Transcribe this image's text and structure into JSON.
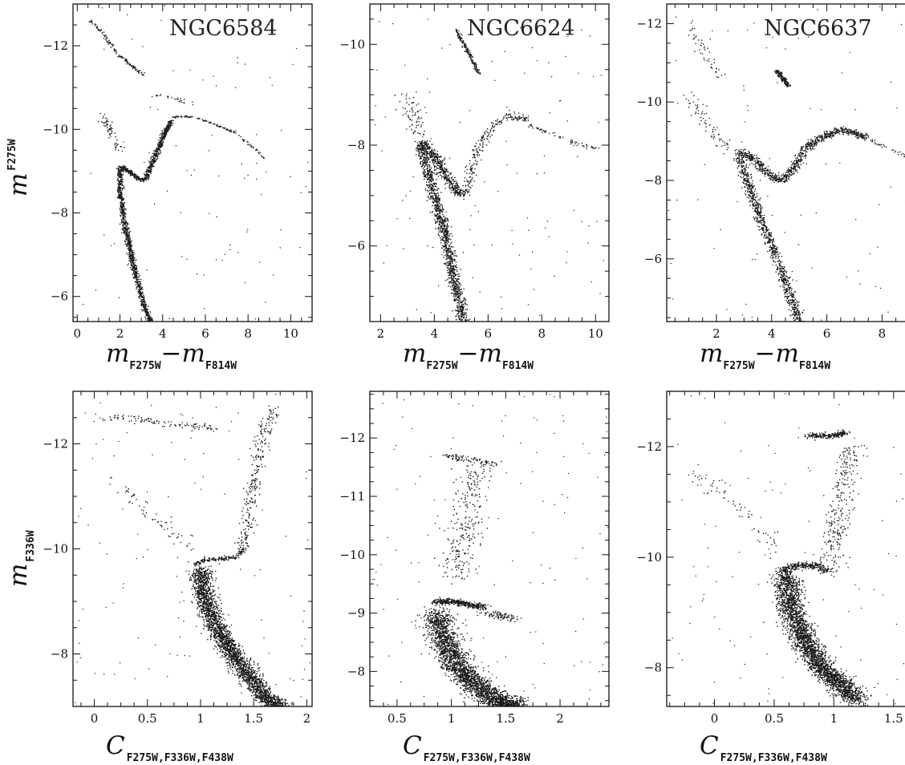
{
  "chart_data": [
    {
      "type": "scatter",
      "panel": "top-left",
      "title": "NGC6584",
      "xlabel": {
        "main": "m",
        "sub": "F275W",
        "main2": "m",
        "sub2": "F814W"
      },
      "ylabel": {
        "main": "m",
        "sub": "F275W",
        "sub_position": "superscript"
      },
      "xlim": [
        -0.2,
        11.0
      ],
      "ylim": [
        -5.4,
        -13.0
      ],
      "x_ticks": [
        0,
        2,
        4,
        6,
        8,
        10
      ],
      "x_tick_labels": [
        "0",
        "2",
        "4",
        "6",
        "8",
        "10"
      ],
      "y_ticks": [
        -6,
        -8,
        -10,
        -12
      ],
      "y_tick_labels": [
        "−6",
        "−8",
        "−10",
        "−12"
      ],
      "sequences": [
        {
          "name": "",
          "points": [
            [
              3.4,
              -5.4
            ],
            [
              3.0,
              -6.0
            ],
            [
              2.6,
              -6.8
            ],
            [
              2.2,
              -7.8
            ],
            [
              2.0,
              -8.6
            ],
            [
              2.05,
              -9.1
            ],
            [
              2.4,
              -9.0
            ],
            [
              2.9,
              -8.8
            ],
            [
              3.2,
              -8.8
            ],
            [
              3.6,
              -9.3
            ],
            [
              4.0,
              -9.8
            ],
            [
              4.4,
              -10.2
            ]
          ],
          "width": 0.14,
          "count": 1600
        },
        {
          "name": "",
          "points": [
            [
              4.5,
              -10.3
            ],
            [
              5.5,
              -10.3
            ],
            [
              6.5,
              -10.1
            ],
            [
              7.5,
              -9.9
            ],
            [
              8.8,
              -9.3
            ]
          ],
          "width": 0.08,
          "count": 120
        },
        {
          "name": "",
          "points": [
            [
              1.2,
              -10.4
            ],
            [
              1.5,
              -10.0
            ],
            [
              1.7,
              -9.7
            ],
            [
              2.0,
              -9.5
            ]
          ],
          "width": 0.25,
          "count": 60
        },
        {
          "name": "",
          "points": [
            [
              0.6,
              -12.6
            ],
            [
              1.2,
              -12.3
            ],
            [
              1.9,
              -11.8
            ],
            [
              2.6,
              -11.5
            ],
            [
              3.1,
              -11.3
            ]
          ],
          "width": 0.1,
          "count": 130
        },
        {
          "name": "",
          "points": [
            [
              3.5,
              -10.8
            ],
            [
              4.2,
              -10.8
            ],
            [
              4.8,
              -10.7
            ],
            [
              5.4,
              -10.6
            ]
          ],
          "width": 0.15,
          "count": 25
        }
      ],
      "scatter_noise": 90
    },
    {
      "type": "scatter",
      "panel": "top-middle",
      "title": "NGC6624",
      "xlabel": {
        "main": "m",
        "sub": "F275W",
        "main2": "m",
        "sub2": "F814W"
      },
      "xlim": [
        1.6,
        10.5
      ],
      "ylim": [
        -4.5,
        -10.8
      ],
      "x_ticks": [
        2,
        4,
        6,
        8,
        10
      ],
      "x_tick_labels": [
        "2",
        "4",
        "6",
        "8",
        "10"
      ],
      "y_ticks": [
        -6,
        -8,
        -10
      ],
      "y_tick_labels": [
        "−6",
        "−8",
        "−10"
      ],
      "sequences": [
        {
          "name": "",
          "points": [
            [
              5.1,
              -4.5
            ],
            [
              4.8,
              -5.2
            ],
            [
              4.4,
              -6.2
            ],
            [
              3.9,
              -7.2
            ],
            [
              3.5,
              -8.0
            ],
            [
              3.6,
              -8.05
            ],
            [
              4.2,
              -7.6
            ],
            [
              4.8,
              -7.1
            ],
            [
              5.1,
              -7.0
            ]
          ],
          "width": 0.22,
          "count": 1700
        },
        {
          "name": "",
          "points": [
            [
              5.2,
              -7.0
            ],
            [
              5.4,
              -7.6
            ],
            [
              5.7,
              -8.0
            ],
            [
              6.2,
              -8.4
            ],
            [
              6.8,
              -8.6
            ],
            [
              7.5,
              -8.5
            ]
          ],
          "width": 0.2,
          "count": 220
        },
        {
          "name": "",
          "points": [
            [
              7.5,
              -8.4
            ],
            [
              8.5,
              -8.2
            ],
            [
              9.5,
              -8.0
            ],
            [
              10.3,
              -7.9
            ]
          ],
          "width": 0.12,
          "count": 60
        },
        {
          "name": "",
          "points": [
            [
              4.8,
              -10.3
            ],
            [
              5.1,
              -10.0
            ],
            [
              5.4,
              -9.7
            ],
            [
              5.7,
              -9.4
            ]
          ],
          "width": 0.08,
          "count": 160
        },
        {
          "name": "",
          "points": [
            [
              2.9,
              -9.0
            ],
            [
              3.2,
              -8.6
            ],
            [
              3.4,
              -8.2
            ]
          ],
          "width": 0.35,
          "count": 70
        }
      ],
      "scatter_noise": 110
    },
    {
      "type": "scatter",
      "panel": "top-right",
      "title": "NGC6637",
      "xlabel": {
        "main": "m",
        "sub": "F275W",
        "main2": "m",
        "sub2": "F814W"
      },
      "xlim": [
        0.2,
        9.5
      ],
      "ylim": [
        -4.4,
        -12.5
      ],
      "x_ticks": [
        2,
        4,
        6,
        8
      ],
      "x_tick_labels": [
        "2",
        "4",
        "6",
        "8"
      ],
      "y_ticks": [
        -6,
        -8,
        -10,
        -12
      ],
      "y_tick_labels": [
        "−6",
        "−8",
        "−10",
        "−12"
      ],
      "sequences": [
        {
          "name": "",
          "points": [
            [
              5.0,
              -4.4
            ],
            [
              4.7,
              -5.0
            ],
            [
              4.2,
              -6.0
            ],
            [
              3.6,
              -7.0
            ],
            [
              3.1,
              -8.0
            ],
            [
              2.85,
              -8.6
            ],
            [
              2.9,
              -8.75
            ],
            [
              3.4,
              -8.5
            ],
            [
              4.0,
              -8.1
            ],
            [
              4.4,
              -8.0
            ],
            [
              4.8,
              -8.3
            ],
            [
              5.2,
              -8.8
            ],
            [
              5.8,
              -9.1
            ],
            [
              6.6,
              -9.3
            ],
            [
              7.4,
              -9.1
            ]
          ],
          "width": 0.2,
          "count": 1700
        },
        {
          "name": "",
          "points": [
            [
              7.4,
              -9.1
            ],
            [
              8.3,
              -8.8
            ],
            [
              9.3,
              -8.5
            ]
          ],
          "width": 0.15,
          "count": 45
        },
        {
          "name": "",
          "points": [
            [
              4.2,
              -10.8
            ],
            [
              4.4,
              -10.6
            ],
            [
              4.6,
              -10.4
            ]
          ],
          "width": 0.1,
          "count": 150
        },
        {
          "name": "",
          "points": [
            [
              1.0,
              -10.2
            ],
            [
              1.5,
              -9.6
            ],
            [
              2.0,
              -9.1
            ],
            [
              2.5,
              -8.8
            ]
          ],
          "width": 0.3,
          "count": 70
        },
        {
          "name": "",
          "points": [
            [
              1.0,
              -12.0
            ],
            [
              1.6,
              -11.2
            ],
            [
              2.2,
              -10.6
            ]
          ],
          "width": 0.25,
          "count": 50
        }
      ],
      "scatter_noise": 100
    },
    {
      "type": "scatter",
      "panel": "bottom-left",
      "xlabel": {
        "main": "C",
        "sub": "F275W,F336W,F438W"
      },
      "ylabel": {
        "main": "m",
        "sub": "F336W",
        "sub_position": "subscript"
      },
      "xlim": [
        -0.2,
        2.05
      ],
      "ylim": [
        -7.0,
        -13.0
      ],
      "x_ticks": [
        0,
        0.5,
        1,
        1.5,
        2
      ],
      "x_tick_labels": [
        "0",
        "0.5",
        "1",
        "1.5",
        "2"
      ],
      "y_ticks": [
        -8,
        -10,
        -12
      ],
      "y_tick_labels": [
        "−8",
        "−10",
        "−12"
      ],
      "sequences": [
        {
          "name": "",
          "points": [
            [
              1.0,
              -9.6
            ],
            [
              1.05,
              -9.0
            ],
            [
              1.15,
              -8.5
            ],
            [
              1.3,
              -8.0
            ],
            [
              1.45,
              -7.6
            ],
            [
              1.6,
              -7.2
            ],
            [
              1.75,
              -7.0
            ]
          ],
          "width": 0.1,
          "count": 2600
        },
        {
          "name": "",
          "points": [
            [
              0.95,
              -9.7
            ],
            [
              1.05,
              -9.8
            ],
            [
              1.2,
              -9.8
            ],
            [
              1.35,
              -9.85
            ],
            [
              1.4,
              -10.0
            ]
          ],
          "width": 0.035,
          "count": 160
        },
        {
          "name": "",
          "points": [
            [
              1.4,
              -10.0
            ],
            [
              1.45,
              -10.6
            ],
            [
              1.5,
              -11.2
            ],
            [
              1.55,
              -11.8
            ],
            [
              1.62,
              -12.4
            ],
            [
              1.7,
              -12.7
            ]
          ],
          "width": 0.07,
          "count": 260
        },
        {
          "name": "",
          "points": [
            [
              0.0,
              -12.5
            ],
            [
              0.3,
              -12.5
            ],
            [
              0.6,
              -12.4
            ],
            [
              0.9,
              -12.35
            ],
            [
              1.15,
              -12.3
            ]
          ],
          "width": 0.06,
          "count": 110
        },
        {
          "name": "",
          "points": [
            [
              0.2,
              -11.2
            ],
            [
              0.45,
              -10.8
            ],
            [
              0.7,
              -10.4
            ],
            [
              0.9,
              -10.05
            ]
          ],
          "width": 0.1,
          "count": 60
        }
      ],
      "scatter_noise": 120
    },
    {
      "type": "scatter",
      "panel": "bottom-middle",
      "xlabel": {
        "main": "C",
        "sub": "F275W,F336W,F438W"
      },
      "xlim": [
        0.25,
        2.45
      ],
      "ylim": [
        -7.4,
        -12.8
      ],
      "x_ticks": [
        0.5,
        1,
        1.5,
        2
      ],
      "x_tick_labels": [
        "0.5",
        "1",
        "1.5",
        "2"
      ],
      "y_ticks": [
        -8,
        -9,
        -10,
        -11,
        -12
      ],
      "y_tick_labels": [
        "−8",
        "−9",
        "−10",
        "−11",
        "−12"
      ],
      "sequences": [
        {
          "name": "",
          "points": [
            [
              0.85,
              -9.0
            ],
            [
              0.95,
              -8.5
            ],
            [
              1.05,
              -8.1
            ],
            [
              1.2,
              -7.8
            ],
            [
              1.4,
              -7.5
            ],
            [
              1.6,
              -7.4
            ]
          ],
          "width": 0.14,
          "count": 2600
        },
        {
          "name": "",
          "points": [
            [
              0.85,
              -9.2
            ],
            [
              1.0,
              -9.2
            ],
            [
              1.15,
              -9.15
            ],
            [
              1.3,
              -9.1
            ]
          ],
          "width": 0.05,
          "count": 380
        },
        {
          "name": "",
          "points": [
            [
              1.3,
              -9.0
            ],
            [
              1.45,
              -8.95
            ],
            [
              1.6,
              -8.9
            ]
          ],
          "width": 0.06,
          "count": 90
        },
        {
          "name": "",
          "points": [
            [
              0.95,
              -11.7
            ],
            [
              1.1,
              -11.65
            ],
            [
              1.25,
              -11.6
            ],
            [
              1.4,
              -11.55
            ]
          ],
          "width": 0.05,
          "count": 90
        },
        {
          "name": "",
          "points": [
            [
              1.05,
              -9.6
            ],
            [
              1.1,
              -10.2
            ],
            [
              1.15,
              -10.8
            ],
            [
              1.2,
              -11.3
            ],
            [
              1.25,
              -11.5
            ]
          ],
          "width": 0.17,
          "count": 260
        }
      ],
      "scatter_noise": 130
    },
    {
      "type": "scatter",
      "panel": "bottom-right",
      "xlabel": {
        "main": "C",
        "sub": "F275W,F336W,F438W"
      },
      "xlim": [
        -0.4,
        1.75
      ],
      "ylim": [
        -7.3,
        -13.0
      ],
      "x_ticks": [
        0,
        0.5,
        1,
        1.5
      ],
      "x_tick_labels": [
        "0",
        "0.5",
        "1",
        "1.5"
      ],
      "y_ticks": [
        -8,
        -10,
        -12
      ],
      "y_tick_labels": [
        "−8",
        "−10",
        "−12"
      ],
      "sequences": [
        {
          "name": "",
          "points": [
            [
              0.6,
              -9.7
            ],
            [
              0.65,
              -9.0
            ],
            [
              0.75,
              -8.5
            ],
            [
              0.9,
              -8.0
            ],
            [
              1.05,
              -7.7
            ],
            [
              1.2,
              -7.4
            ]
          ],
          "width": 0.11,
          "count": 2800
        },
        {
          "name": "",
          "points": [
            [
              0.55,
              -9.75
            ],
            [
              0.7,
              -9.85
            ],
            [
              0.85,
              -9.85
            ],
            [
              0.95,
              -9.75
            ]
          ],
          "width": 0.05,
          "count": 300
        },
        {
          "name": "",
          "points": [
            [
              0.95,
              -9.7
            ],
            [
              1.0,
              -10.3
            ],
            [
              1.05,
              -10.9
            ],
            [
              1.1,
              -11.5
            ],
            [
              1.15,
              -12.0
            ]
          ],
          "width": 0.11,
          "count": 280
        },
        {
          "name": "",
          "points": [
            [
              0.8,
              -12.2
            ],
            [
              0.9,
              -12.2
            ],
            [
              1.0,
              -12.2
            ],
            [
              1.1,
              -12.25
            ]
          ],
          "width": 0.045,
          "count": 200
        },
        {
          "name": "",
          "points": [
            [
              -0.2,
              -11.6
            ],
            [
              0.1,
              -11.1
            ],
            [
              0.35,
              -10.6
            ],
            [
              0.55,
              -10.1
            ]
          ],
          "width": 0.1,
          "count": 60
        }
      ],
      "scatter_noise": 110
    }
  ]
}
